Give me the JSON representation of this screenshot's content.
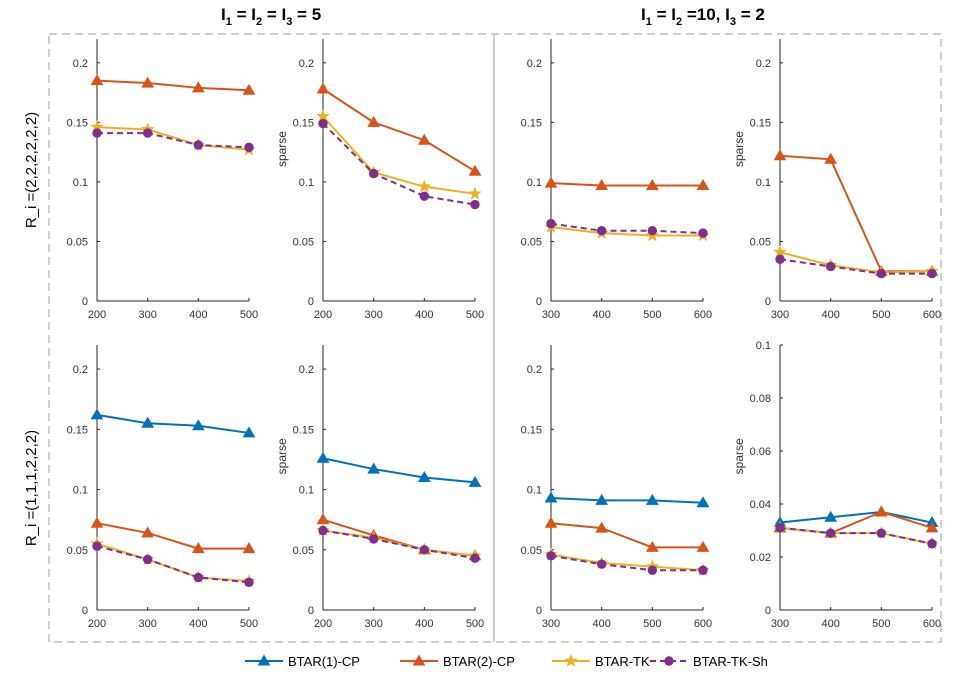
{
  "titles": {
    "left": {
      "base": "I",
      "subs": [
        "1",
        "2",
        "3"
      ],
      "value": "5"
    },
    "right": {
      "base": "I",
      "subs": [
        "1",
        "2",
        "3"
      ],
      "values": [
        "10",
        "2"
      ]
    }
  },
  "row_labels": [
    "R_i =(2,2,2,2,2,2)",
    "R_i =(1,1,1,2,2,2)"
  ],
  "legend": [
    {
      "name": "BTAR(1)-CP",
      "color": "#0072BD",
      "marker": "triangle",
      "dash": false
    },
    {
      "name": "BTAR(2)-CP",
      "color": "#D95319",
      "marker": "triangle",
      "dash": false
    },
    {
      "name": "BTAR-TK",
      "color": "#EDB120",
      "marker": "star",
      "dash": false
    },
    {
      "name": "BTAR-TK-Sh",
      "color": "#7E2F8E",
      "marker": "circle",
      "dash": true
    }
  ],
  "chart_data": [
    {
      "type": "line",
      "panel": "row1-col1",
      "x": [
        200,
        300,
        400,
        500
      ],
      "ylim": [
        0,
        0.22
      ],
      "yticks": [
        0,
        0.05,
        0.1,
        0.15,
        0.2
      ],
      "ytick_labels": [
        "0",
        "0.05",
        "0.1",
        "0.15",
        "0.2"
      ],
      "ylabel": "",
      "series": [
        {
          "name": "BTAR(2)-CP",
          "values": [
            0.185,
            0.183,
            0.179,
            0.177
          ]
        },
        {
          "name": "BTAR-TK",
          "values": [
            0.146,
            0.144,
            0.131,
            0.127
          ]
        },
        {
          "name": "BTAR-TK-Sh",
          "values": [
            0.141,
            0.141,
            0.131,
            0.129
          ]
        }
      ]
    },
    {
      "type": "line",
      "panel": "row1-col2",
      "x": [
        200,
        300,
        400,
        500
      ],
      "ylim": [
        0,
        0.22
      ],
      "yticks": [
        0,
        0.05,
        0.1,
        0.15,
        0.2
      ],
      "ytick_labels": [
        "0",
        "0.05",
        "0.1",
        "0.15",
        "0.2"
      ],
      "ylabel": "sparse",
      "series": [
        {
          "name": "BTAR(2)-CP",
          "values": [
            0.178,
            0.15,
            0.135,
            0.109
          ]
        },
        {
          "name": "BTAR-TK",
          "values": [
            0.155,
            0.108,
            0.096,
            0.09
          ]
        },
        {
          "name": "BTAR-TK-Sh",
          "values": [
            0.149,
            0.107,
            0.088,
            0.081
          ]
        }
      ]
    },
    {
      "type": "line",
      "panel": "row1-col3",
      "x": [
        300,
        400,
        500,
        600
      ],
      "ylim": [
        0,
        0.22
      ],
      "yticks": [
        0,
        0.05,
        0.1,
        0.15,
        0.2
      ],
      "ytick_labels": [
        "0",
        "0.05",
        "0.1",
        "0.15",
        "0.2"
      ],
      "ylabel": "",
      "series": [
        {
          "name": "BTAR(2)-CP",
          "values": [
            0.099,
            0.097,
            0.097,
            0.097
          ]
        },
        {
          "name": "BTAR-TK",
          "values": [
            0.062,
            0.057,
            0.055,
            0.055
          ]
        },
        {
          "name": "BTAR-TK-Sh",
          "values": [
            0.065,
            0.059,
            0.059,
            0.057
          ]
        }
      ]
    },
    {
      "type": "line",
      "panel": "row1-col4",
      "x": [
        300,
        400,
        500,
        600
      ],
      "ylim": [
        0,
        0.22
      ],
      "yticks": [
        0,
        0.05,
        0.1,
        0.15,
        0.2
      ],
      "ytick_labels": [
        "0",
        "0.05",
        "0.1",
        "0.15",
        "0.2"
      ],
      "ylabel": "sparse",
      "series": [
        {
          "name": "BTAR(2)-CP",
          "values": [
            0.122,
            0.119,
            0.025,
            0.025
          ]
        },
        {
          "name": "BTAR-TK",
          "values": [
            0.041,
            0.03,
            0.024,
            0.025
          ]
        },
        {
          "name": "BTAR-TK-Sh",
          "values": [
            0.035,
            0.029,
            0.023,
            0.023
          ]
        }
      ]
    },
    {
      "type": "line",
      "panel": "row2-col1",
      "x": [
        200,
        300,
        400,
        500
      ],
      "ylim": [
        0,
        0.22
      ],
      "yticks": [
        0,
        0.05,
        0.1,
        0.15,
        0.2
      ],
      "ytick_labels": [
        "0",
        "0.05",
        "0.1",
        "0.15",
        "0.2"
      ],
      "ylabel": "",
      "series": [
        {
          "name": "BTAR(1)-CP",
          "values": [
            0.162,
            0.155,
            0.153,
            0.147
          ]
        },
        {
          "name": "BTAR(2)-CP",
          "values": [
            0.072,
            0.064,
            0.051,
            0.051
          ]
        },
        {
          "name": "BTAR-TK",
          "values": [
            0.055,
            0.042,
            0.027,
            0.024
          ]
        },
        {
          "name": "BTAR-TK-Sh",
          "values": [
            0.053,
            0.042,
            0.027,
            0.023
          ]
        }
      ]
    },
    {
      "type": "line",
      "panel": "row2-col2",
      "x": [
        200,
        300,
        400,
        500
      ],
      "ylim": [
        0,
        0.22
      ],
      "yticks": [
        0,
        0.05,
        0.1,
        0.15,
        0.2
      ],
      "ytick_labels": [
        "0",
        "0.05",
        "0.1",
        "0.15",
        "0.2"
      ],
      "ylabel": "sparse",
      "series": [
        {
          "name": "BTAR(1)-CP",
          "values": [
            0.126,
            0.117,
            0.11,
            0.106
          ]
        },
        {
          "name": "BTAR(2)-CP",
          "values": [
            0.075,
            0.062,
            0.05,
            0.045
          ]
        },
        {
          "name": "BTAR-TK",
          "values": [
            0.066,
            0.06,
            0.05,
            0.045
          ]
        },
        {
          "name": "BTAR-TK-Sh",
          "values": [
            0.066,
            0.059,
            0.05,
            0.043
          ]
        }
      ]
    },
    {
      "type": "line",
      "panel": "row2-col3",
      "x": [
        300,
        400,
        500,
        600
      ],
      "ylim": [
        0,
        0.22
      ],
      "yticks": [
        0,
        0.05,
        0.1,
        0.15,
        0.2
      ],
      "ytick_labels": [
        "0",
        "0.05",
        "0.1",
        "0.15",
        "0.2"
      ],
      "ylabel": "",
      "series": [
        {
          "name": "BTAR(1)-CP",
          "values": [
            0.093,
            0.091,
            0.091,
            0.089
          ]
        },
        {
          "name": "BTAR(2)-CP",
          "values": [
            0.072,
            0.068,
            0.052,
            0.052
          ]
        },
        {
          "name": "BTAR-TK",
          "values": [
            0.046,
            0.039,
            0.036,
            0.033
          ]
        },
        {
          "name": "BTAR-TK-Sh",
          "values": [
            0.045,
            0.038,
            0.033,
            0.033
          ]
        }
      ]
    },
    {
      "type": "line",
      "panel": "row2-col4",
      "x": [
        300,
        400,
        500,
        600
      ],
      "ylim": [
        0,
        0.1
      ],
      "yticks": [
        0,
        0.02,
        0.04,
        0.06,
        0.08,
        0.1
      ],
      "ytick_labels": [
        "0",
        "0.02",
        "0.04",
        "0.06",
        "0.08",
        "0.1"
      ],
      "ylabel": "sparse",
      "series": [
        {
          "name": "BTAR(1)-CP",
          "values": [
            0.033,
            0.035,
            0.037,
            0.033
          ]
        },
        {
          "name": "BTAR(2)-CP",
          "values": [
            0.031,
            0.029,
            0.037,
            0.031
          ]
        },
        {
          "name": "BTAR-TK",
          "values": [
            0.031,
            0.029,
            0.029,
            0.025
          ]
        },
        {
          "name": "BTAR-TK-Sh",
          "values": [
            0.031,
            0.029,
            0.029,
            0.025
          ]
        }
      ]
    }
  ]
}
